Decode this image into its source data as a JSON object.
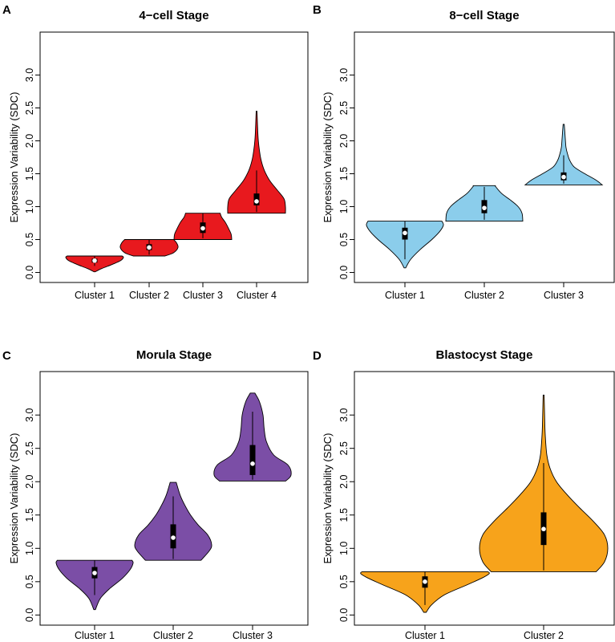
{
  "chart_data": [
    {
      "panel": "A",
      "type": "violin",
      "title": "4−cell Stage",
      "ylabel": "Expression Variability (SDC)",
      "ylim": [
        0,
        3.5
      ],
      "yticks": [
        "0.0",
        "0.5",
        "1.0",
        "1.5",
        "2.0",
        "2.5",
        "3.0"
      ],
      "categories": [
        "Cluster 1",
        "Cluster 2",
        "Cluster 3",
        "Cluster 4"
      ],
      "color": "#e8191e",
      "violins": [
        {
          "min": 0.01,
          "max": 0.25,
          "q1": 0.15,
          "median": 0.18,
          "q3": 0.21,
          "wlo": 0.1,
          "whi": 0.25,
          "profile": [
            [
              0.01,
              0.02
            ],
            [
              0.06,
              0.25
            ],
            [
              0.12,
              0.6
            ],
            [
              0.18,
              0.9
            ],
            [
              0.23,
              1.0
            ],
            [
              0.25,
              0.95
            ]
          ]
        },
        {
          "min": 0.25,
          "max": 0.5,
          "q1": 0.34,
          "median": 0.38,
          "q3": 0.43,
          "wlo": 0.27,
          "whi": 0.5,
          "profile": [
            [
              0.25,
              0.55
            ],
            [
              0.3,
              0.85
            ],
            [
              0.38,
              1.0
            ],
            [
              0.45,
              0.95
            ],
            [
              0.5,
              0.85
            ]
          ]
        },
        {
          "min": 0.5,
          "max": 0.9,
          "q1": 0.6,
          "median": 0.67,
          "q3": 0.76,
          "wlo": 0.52,
          "whi": 0.9,
          "profile": [
            [
              0.5,
              1.0
            ],
            [
              0.58,
              0.98
            ],
            [
              0.66,
              0.9
            ],
            [
              0.76,
              0.78
            ],
            [
              0.84,
              0.65
            ],
            [
              0.9,
              0.6
            ]
          ]
        },
        {
          "min": 0.9,
          "max": 2.45,
          "q1": 1.02,
          "median": 1.08,
          "q3": 1.2,
          "wlo": 0.92,
          "whi": 1.55,
          "profile": [
            [
              0.9,
              1.0
            ],
            [
              1.0,
              1.0
            ],
            [
              1.12,
              0.95
            ],
            [
              1.25,
              0.72
            ],
            [
              1.4,
              0.45
            ],
            [
              1.55,
              0.27
            ],
            [
              1.7,
              0.16
            ],
            [
              1.85,
              0.1
            ],
            [
              2.0,
              0.06
            ],
            [
              2.2,
              0.035
            ],
            [
              2.45,
              0.015
            ]
          ]
        }
      ]
    },
    {
      "panel": "B",
      "type": "violin",
      "title": "8−cell Stage",
      "ylabel": "Expression Variability (SDC)",
      "ylim": [
        0,
        3.5
      ],
      "yticks": [
        "0.0",
        "0.5",
        "1.0",
        "1.5",
        "2.0",
        "2.5",
        "3.0"
      ],
      "categories": [
        "Cluster 1",
        "Cluster 2",
        "Cluster 3"
      ],
      "color": "#8bcdeb",
      "violins": [
        {
          "min": 0.07,
          "max": 0.78,
          "q1": 0.5,
          "median": 0.6,
          "q3": 0.68,
          "wlo": 0.2,
          "whi": 0.78,
          "profile": [
            [
              0.07,
              0.02
            ],
            [
              0.2,
              0.15
            ],
            [
              0.35,
              0.4
            ],
            [
              0.5,
              0.7
            ],
            [
              0.62,
              0.9
            ],
            [
              0.72,
              1.0
            ],
            [
              0.78,
              0.96
            ]
          ]
        },
        {
          "min": 0.78,
          "max": 1.32,
          "q1": 0.9,
          "median": 0.98,
          "q3": 1.1,
          "wlo": 0.8,
          "whi": 1.3,
          "profile": [
            [
              0.78,
              1.0
            ],
            [
              0.9,
              0.98
            ],
            [
              1.0,
              0.88
            ],
            [
              1.1,
              0.68
            ],
            [
              1.2,
              0.45
            ],
            [
              1.3,
              0.3
            ],
            [
              1.32,
              0.29
            ]
          ]
        },
        {
          "min": 1.33,
          "max": 2.25,
          "q1": 1.4,
          "median": 1.45,
          "q3": 1.52,
          "wlo": 1.35,
          "whi": 1.78,
          "profile": [
            [
              1.33,
              1.0
            ],
            [
              1.4,
              0.85
            ],
            [
              1.5,
              0.55
            ],
            [
              1.6,
              0.28
            ],
            [
              1.7,
              0.16
            ],
            [
              1.8,
              0.1
            ],
            [
              1.9,
              0.06
            ],
            [
              2.05,
              0.04
            ],
            [
              2.25,
              0.015
            ]
          ]
        }
      ]
    },
    {
      "panel": "C",
      "type": "violin",
      "title": "Morula Stage",
      "ylabel": "Expression Variability (SDC)",
      "ylim": [
        0,
        3.5
      ],
      "yticks": [
        "0.0",
        "0.5",
        "1.0",
        "1.5",
        "2.0",
        "2.5",
        "3.0"
      ],
      "categories": [
        "Cluster 1",
        "Cluster 2",
        "Cluster 3"
      ],
      "color": "#7b4ea6",
      "violins": [
        {
          "min": 0.08,
          "max": 0.82,
          "q1": 0.55,
          "median": 0.63,
          "q3": 0.72,
          "wlo": 0.3,
          "whi": 0.82,
          "profile": [
            [
              0.08,
              0.02
            ],
            [
              0.25,
              0.15
            ],
            [
              0.4,
              0.4
            ],
            [
              0.55,
              0.72
            ],
            [
              0.68,
              0.92
            ],
            [
              0.78,
              1.0
            ],
            [
              0.82,
              0.97
            ]
          ]
        },
        {
          "min": 0.82,
          "max": 1.99,
          "q1": 1.0,
          "median": 1.16,
          "q3": 1.36,
          "wlo": 0.84,
          "whi": 1.78,
          "profile": [
            [
              0.82,
              0.72
            ],
            [
              0.95,
              0.92
            ],
            [
              1.05,
              1.0
            ],
            [
              1.2,
              0.9
            ],
            [
              1.35,
              0.65
            ],
            [
              1.5,
              0.45
            ],
            [
              1.65,
              0.3
            ],
            [
              1.8,
              0.18
            ],
            [
              1.99,
              0.08
            ]
          ]
        },
        {
          "min": 2.01,
          "max": 3.33,
          "q1": 2.1,
          "median": 2.27,
          "q3": 2.55,
          "wlo": 2.03,
          "whi": 3.05,
          "profile": [
            [
              2.01,
              0.86
            ],
            [
              2.1,
              1.0
            ],
            [
              2.25,
              0.92
            ],
            [
              2.4,
              0.55
            ],
            [
              2.6,
              0.36
            ],
            [
              2.8,
              0.3
            ],
            [
              3.0,
              0.27
            ],
            [
              3.2,
              0.18
            ],
            [
              3.33,
              0.06
            ]
          ]
        }
      ]
    },
    {
      "panel": "D",
      "type": "violin",
      "title": "Blastocyst Stage",
      "ylabel": "Expression Variability (SDC)",
      "ylim": [
        0,
        3.5
      ],
      "yticks": [
        "0.0",
        "0.5",
        "1.0",
        "1.5",
        "2.0",
        "2.5",
        "3.0"
      ],
      "categories": [
        "Cluster 1",
        "Cluster 2"
      ],
      "color": "#f7a31b",
      "violins": [
        {
          "min": 0.04,
          "max": 0.65,
          "q1": 0.41,
          "median": 0.5,
          "q3": 0.58,
          "wlo": 0.15,
          "whi": 0.65,
          "profile": [
            [
              0.04,
              0.02
            ],
            [
              0.15,
              0.1
            ],
            [
              0.3,
              0.3
            ],
            [
              0.45,
              0.65
            ],
            [
              0.55,
              0.88
            ],
            [
              0.62,
              1.0
            ],
            [
              0.65,
              0.98
            ]
          ]
        },
        {
          "min": 0.65,
          "max": 3.3,
          "q1": 1.05,
          "median": 1.29,
          "q3": 1.54,
          "wlo": 0.67,
          "whi": 2.28,
          "profile": [
            [
              0.65,
              0.82
            ],
            [
              0.8,
              0.95
            ],
            [
              1.0,
              1.0
            ],
            [
              1.2,
              0.95
            ],
            [
              1.4,
              0.78
            ],
            [
              1.6,
              0.57
            ],
            [
              1.8,
              0.37
            ],
            [
              2.0,
              0.2
            ],
            [
              2.2,
              0.1
            ],
            [
              2.4,
              0.05
            ],
            [
              2.7,
              0.025
            ],
            [
              3.0,
              0.015
            ],
            [
              3.3,
              0.008
            ]
          ]
        }
      ]
    }
  ]
}
